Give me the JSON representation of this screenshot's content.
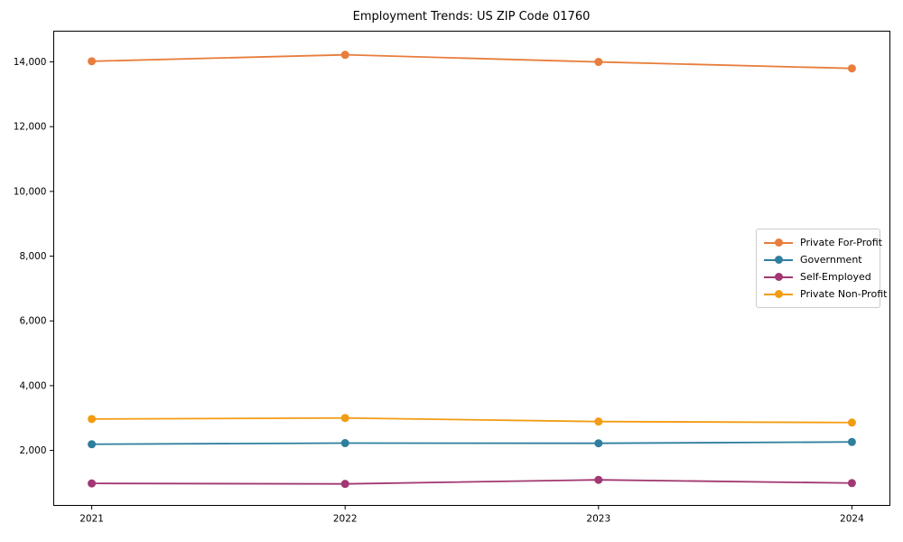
{
  "chart_data": {
    "type": "line",
    "title": "Employment Trends: US ZIP Code 01760",
    "xlabel": "",
    "ylabel": "",
    "x": [
      2021,
      2022,
      2023,
      2024
    ],
    "x_tick_labels": [
      "2021",
      "2022",
      "2023",
      "2024"
    ],
    "xlim": [
      2020.85,
      2024.15
    ],
    "ylim": [
      300,
      14950
    ],
    "y_ticks": [
      2000,
      4000,
      6000,
      8000,
      10000,
      12000,
      14000
    ],
    "y_tick_labels": [
      "2,000",
      "4,000",
      "6,000",
      "8,000",
      "10,000",
      "12,000",
      "14,000"
    ],
    "grid": false,
    "marker": "circle",
    "legend_position": "center right",
    "background_color": "#ffffff",
    "axis_color": "#000000",
    "legend_border_color": "#cccccc",
    "series": [
      {
        "name": "Private For-Profit",
        "color": "#e87d3c",
        "values": [
          14020,
          14220,
          14000,
          13800
        ]
      },
      {
        "name": "Government",
        "color": "#2e7f9e",
        "values": [
          2190,
          2225,
          2220,
          2260
        ]
      },
      {
        "name": "Self-Employed",
        "color": "#a23771",
        "values": [
          980,
          965,
          1090,
          990
        ]
      },
      {
        "name": "Private Non-Profit",
        "color": "#f29c12",
        "values": [
          2970,
          3000,
          2890,
          2860
        ]
      }
    ]
  }
}
